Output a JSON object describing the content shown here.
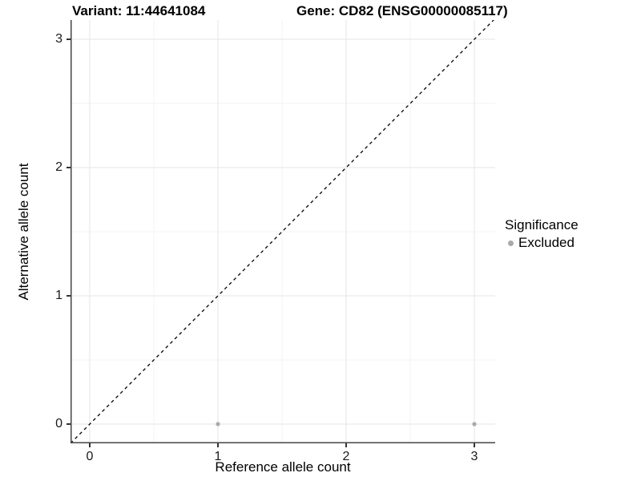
{
  "title": {
    "variant": "Variant: 11:44641084",
    "gene": "Gene: CD82 (ENSG00000085117)"
  },
  "axes": {
    "x": {
      "title": "Reference allele count",
      "tick_labels": [
        "0",
        "1",
        "2",
        "3"
      ]
    },
    "y": {
      "title": "Alternative allele count",
      "tick_labels": [
        "0",
        "1",
        "2",
        "3"
      ]
    }
  },
  "legend": {
    "title": "Significance",
    "items": [
      {
        "label": "Excluded",
        "color": "#aaaaaa",
        "marker": "circle-icon"
      }
    ]
  },
  "colors": {
    "background": "#ffffff",
    "axis_line": "#444444",
    "grid_major": "#e6e6e6",
    "grid_minor": "#f3f3f3",
    "identity_line": "#000000",
    "point_excluded": "#aaaaaa",
    "text": "#000000"
  },
  "chart_data": {
    "type": "scatter",
    "title": "Variant: 11:44641084 / Gene: CD82 (ENSG00000085117)",
    "xlabel": "Reference allele count",
    "ylabel": "Alternative allele count",
    "xlim": [
      -0.15,
      3.16
    ],
    "ylim": [
      -0.15,
      3.16
    ],
    "x_ticks": [
      0,
      1,
      2,
      3
    ],
    "y_ticks": [
      0,
      1,
      2,
      3
    ],
    "grid": "major+minor",
    "legend_position": "right",
    "series": [
      {
        "name": "Excluded",
        "color": "#aaaaaa",
        "points": [
          [
            1,
            0
          ],
          [
            3,
            0
          ]
        ]
      }
    ],
    "reference_line": {
      "kind": "identity y=x",
      "style": "dashed",
      "color": "#000000"
    }
  }
}
